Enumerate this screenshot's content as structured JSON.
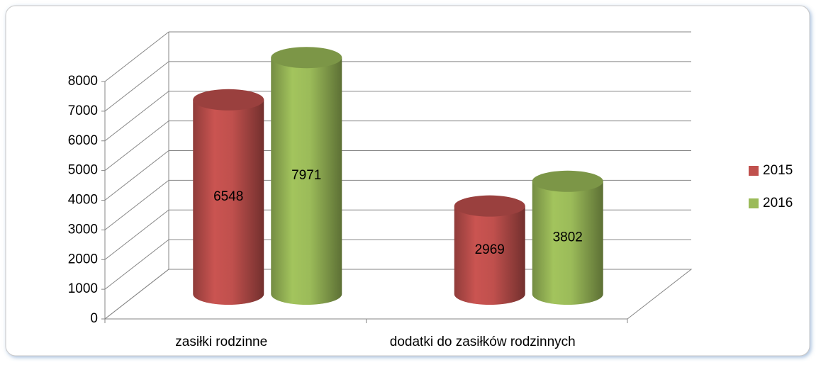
{
  "chart_data": {
    "type": "bar3d",
    "categories": [
      "zasiłki rodzinne",
      "dodatki do zasiłków rodzinnych"
    ],
    "series": [
      {
        "name": "2015",
        "color": "#c0504d",
        "values": [
          6548,
          2969
        ]
      },
      {
        "name": "2016",
        "color": "#9bbb59",
        "values": [
          7971,
          3802
        ]
      }
    ],
    "ylim": [
      0,
      8000
    ],
    "yticks": [
      0,
      1000,
      2000,
      3000,
      4000,
      5000,
      6000,
      7000,
      8000
    ],
    "grid": true,
    "legend": "right"
  }
}
